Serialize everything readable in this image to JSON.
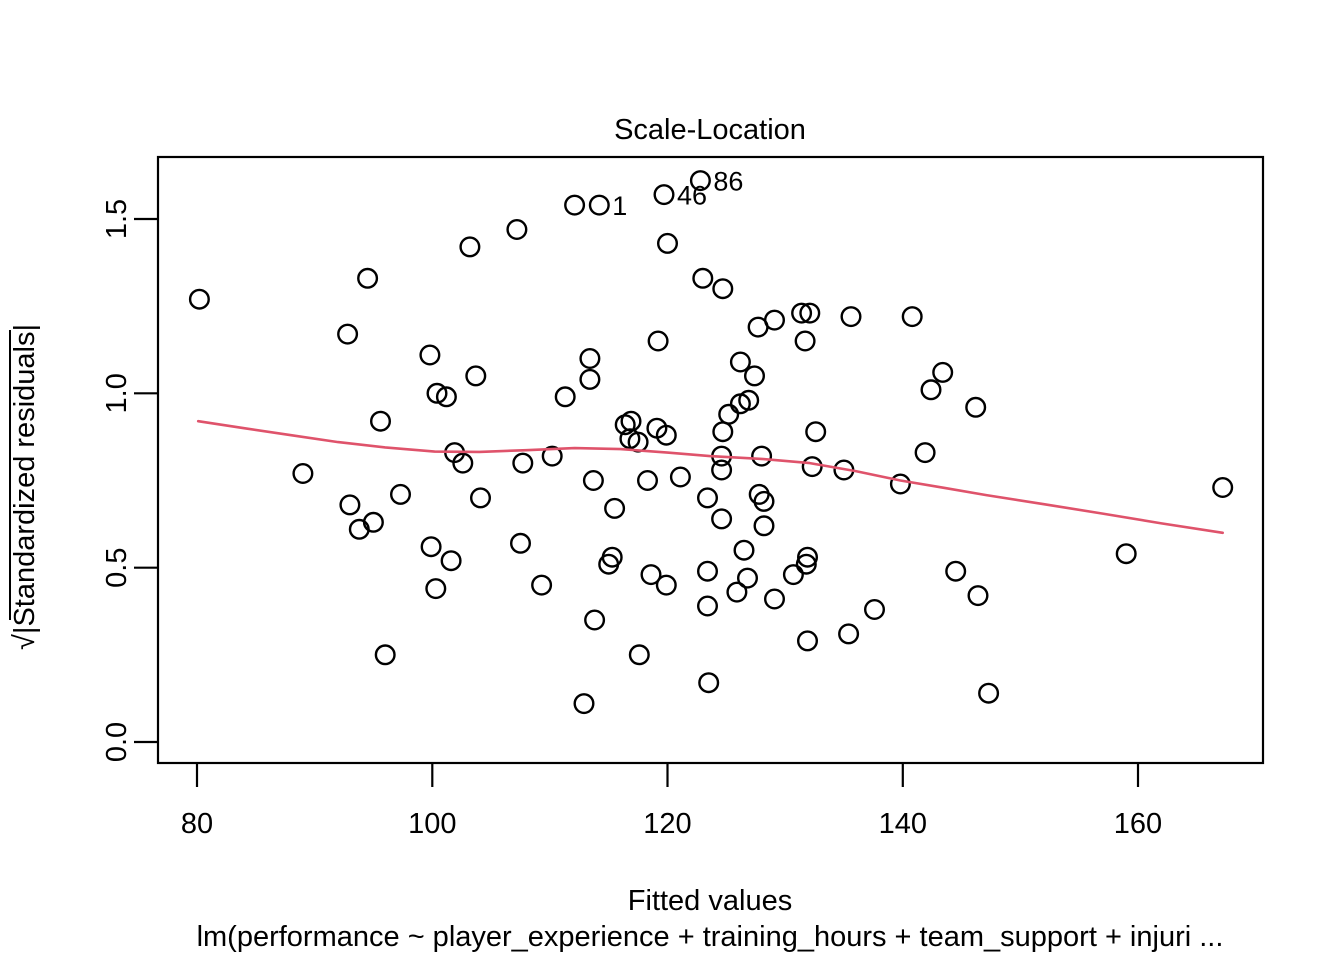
{
  "figure": {
    "title": "Scale-Location",
    "xlabel": "Fitted values",
    "ylabel": "√|Standardized residuals|",
    "caption": "lm(performance ~ player_experience + training_hours + team_support + injuri ...",
    "colors": {
      "points": "#000000",
      "smooth_line": "#DF536B",
      "axis": "#000000",
      "background": "#FFFFFF"
    }
  },
  "chart_data": {
    "type": "scatter",
    "title": "Scale-Location",
    "xlabel": "Fitted values",
    "ylabel": "sqrt(|Standardized residuals|)",
    "subtitle": "lm(performance ~ player_experience + training_hours + team_support + injuri ...",
    "grid": false,
    "legend": null,
    "xlim": [
      76.7,
      170.6
    ],
    "ylim": [
      -0.06,
      1.68
    ],
    "x_ticks": [
      {
        "label": "80",
        "value": 80
      },
      {
        "label": "100",
        "value": 100
      },
      {
        "label": "120",
        "value": 120
      },
      {
        "label": "140",
        "value": 140
      },
      {
        "label": "160",
        "value": 160
      }
    ],
    "y_ticks": [
      {
        "label": "0.0",
        "value": 0.0
      },
      {
        "label": "0.5",
        "value": 0.5
      },
      {
        "label": "1.0",
        "value": 1.0
      },
      {
        "label": "1.5",
        "value": 1.5
      }
    ],
    "points": [
      [
        80.2,
        1.27
      ],
      [
        92.8,
        1.17
      ],
      [
        94.5,
        1.33
      ],
      [
        96.0,
        0.25
      ],
      [
        89.0,
        0.77
      ],
      [
        93.0,
        0.68
      ],
      [
        93.8,
        0.61
      ],
      [
        95.0,
        0.63
      ],
      [
        95.6,
        0.92
      ],
      [
        97.3,
        0.71
      ],
      [
        99.8,
        1.11
      ],
      [
        99.9,
        0.56
      ],
      [
        100.3,
        0.44
      ],
      [
        100.4,
        1.0
      ],
      [
        101.2,
        0.99
      ],
      [
        101.6,
        0.52
      ],
      [
        101.9,
        0.83
      ],
      [
        102.6,
        0.8
      ],
      [
        103.2,
        1.42
      ],
      [
        103.7,
        1.05
      ],
      [
        104.1,
        0.7
      ],
      [
        107.2,
        1.47
      ],
      [
        107.5,
        0.57
      ],
      [
        107.7,
        0.8
      ],
      [
        109.3,
        0.45
      ],
      [
        110.2,
        0.82
      ],
      [
        111.3,
        0.99
      ],
      [
        112.1,
        1.54
      ],
      [
        112.9,
        0.11
      ],
      [
        113.4,
        1.1
      ],
      [
        113.4,
        1.04
      ],
      [
        113.7,
        0.75
      ],
      [
        113.8,
        0.35
      ],
      [
        115.0,
        0.51
      ],
      [
        115.3,
        0.53
      ],
      [
        115.5,
        0.67
      ],
      [
        116.4,
        0.91
      ],
      [
        116.8,
        0.87
      ],
      [
        116.9,
        0.92
      ],
      [
        117.5,
        0.86
      ],
      [
        117.6,
        0.25
      ],
      [
        118.3,
        0.75
      ],
      [
        118.6,
        0.48
      ],
      [
        119.1,
        0.9
      ],
      [
        119.2,
        1.15
      ],
      [
        119.9,
        0.88
      ],
      [
        119.9,
        0.45
      ],
      [
        120.0,
        1.43
      ],
      [
        121.1,
        0.76
      ],
      [
        123.0,
        1.33
      ],
      [
        123.4,
        0.7
      ],
      [
        123.4,
        0.49
      ],
      [
        123.4,
        0.39
      ],
      [
        123.5,
        0.17
      ],
      [
        124.6,
        0.82
      ],
      [
        124.6,
        0.78
      ],
      [
        124.6,
        0.64
      ],
      [
        124.7,
        1.3
      ],
      [
        124.7,
        0.89
      ],
      [
        125.2,
        0.94
      ],
      [
        125.9,
        0.43
      ],
      [
        126.2,
        1.09
      ],
      [
        126.2,
        0.97
      ],
      [
        126.5,
        0.55
      ],
      [
        126.8,
        0.47
      ],
      [
        126.9,
        0.98
      ],
      [
        127.4,
        1.05
      ],
      [
        127.7,
        1.19
      ],
      [
        127.8,
        0.71
      ],
      [
        128.0,
        0.82
      ],
      [
        128.2,
        0.69
      ],
      [
        128.2,
        0.62
      ],
      [
        129.1,
        1.21
      ],
      [
        129.1,
        0.41
      ],
      [
        130.7,
        0.48
      ],
      [
        131.4,
        1.23
      ],
      [
        131.7,
        1.15
      ],
      [
        131.8,
        0.51
      ],
      [
        131.9,
        0.53
      ],
      [
        131.9,
        0.29
      ],
      [
        132.1,
        1.23
      ],
      [
        132.3,
        0.79
      ],
      [
        132.6,
        0.89
      ],
      [
        135.0,
        0.78
      ],
      [
        135.4,
        0.31
      ],
      [
        135.6,
        1.22
      ],
      [
        137.6,
        0.38
      ],
      [
        139.8,
        0.74
      ],
      [
        140.8,
        1.22
      ],
      [
        141.9,
        0.83
      ],
      [
        142.4,
        1.01
      ],
      [
        143.4,
        1.06
      ],
      [
        144.5,
        0.49
      ],
      [
        146.2,
        0.96
      ],
      [
        146.4,
        0.42
      ],
      [
        147.3,
        0.14
      ],
      [
        159.0,
        0.54
      ],
      [
        167.2,
        0.73
      ]
    ],
    "labeled_points": [
      {
        "label": "1",
        "x": 114.2,
        "y": 1.54
      },
      {
        "label": "46",
        "x": 119.7,
        "y": 1.57
      },
      {
        "label": "86",
        "x": 122.8,
        "y": 1.61
      }
    ],
    "smooth_line": [
      [
        80.1,
        0.92
      ],
      [
        84,
        0.9
      ],
      [
        88,
        0.88
      ],
      [
        92,
        0.86
      ],
      [
        96,
        0.845
      ],
      [
        100.2,
        0.833
      ],
      [
        104,
        0.832
      ],
      [
        108,
        0.837
      ],
      [
        112.1,
        0.843
      ],
      [
        116,
        0.84
      ],
      [
        120,
        0.83
      ],
      [
        123.6,
        0.82
      ],
      [
        128,
        0.812
      ],
      [
        132.1,
        0.8
      ],
      [
        136,
        0.777
      ],
      [
        139.8,
        0.75
      ],
      [
        143.5,
        0.729
      ],
      [
        147.1,
        0.708
      ],
      [
        152,
        0.682
      ],
      [
        157,
        0.655
      ],
      [
        162,
        0.627
      ],
      [
        167.2,
        0.6
      ]
    ]
  }
}
